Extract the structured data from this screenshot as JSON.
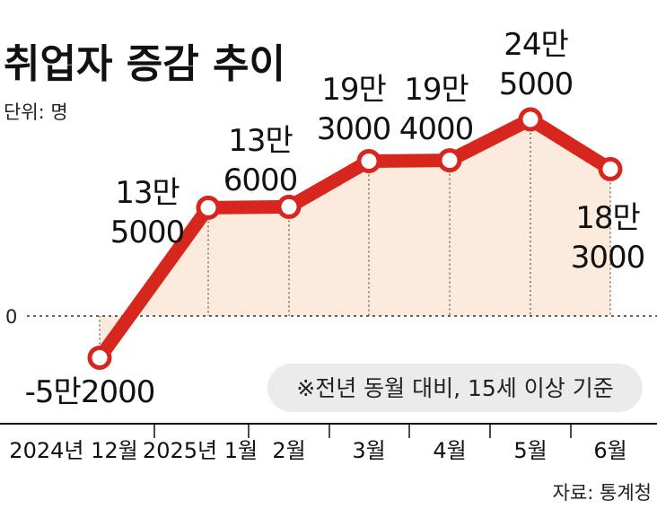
{
  "chart_data": {
    "type": "line",
    "title": "취업자 증감 추이",
    "unit_label": "단위: 명",
    "zero_label": "0",
    "categories": [
      "2024년 12월",
      "2025년 1월",
      "2월",
      "3월",
      "4월",
      "5월",
      "6월"
    ],
    "values": [
      -52000,
      135000,
      136000,
      193000,
      194000,
      245000,
      183000
    ],
    "point_labels": [
      [
        "-5만2000"
      ],
      [
        "13만",
        "5000"
      ],
      [
        "13만",
        "6000"
      ],
      [
        "19만",
        "3000"
      ],
      [
        "19만",
        "4000"
      ],
      [
        "24만",
        "5000"
      ],
      [
        "18만",
        "3000"
      ]
    ],
    "note": "※전년 동월 대비, 15세 이상 기준",
    "source": "자료: 통계청",
    "colors": {
      "line": "#d7261e",
      "fill": "#fcebdc",
      "note_bg": "#ebebeb"
    }
  }
}
